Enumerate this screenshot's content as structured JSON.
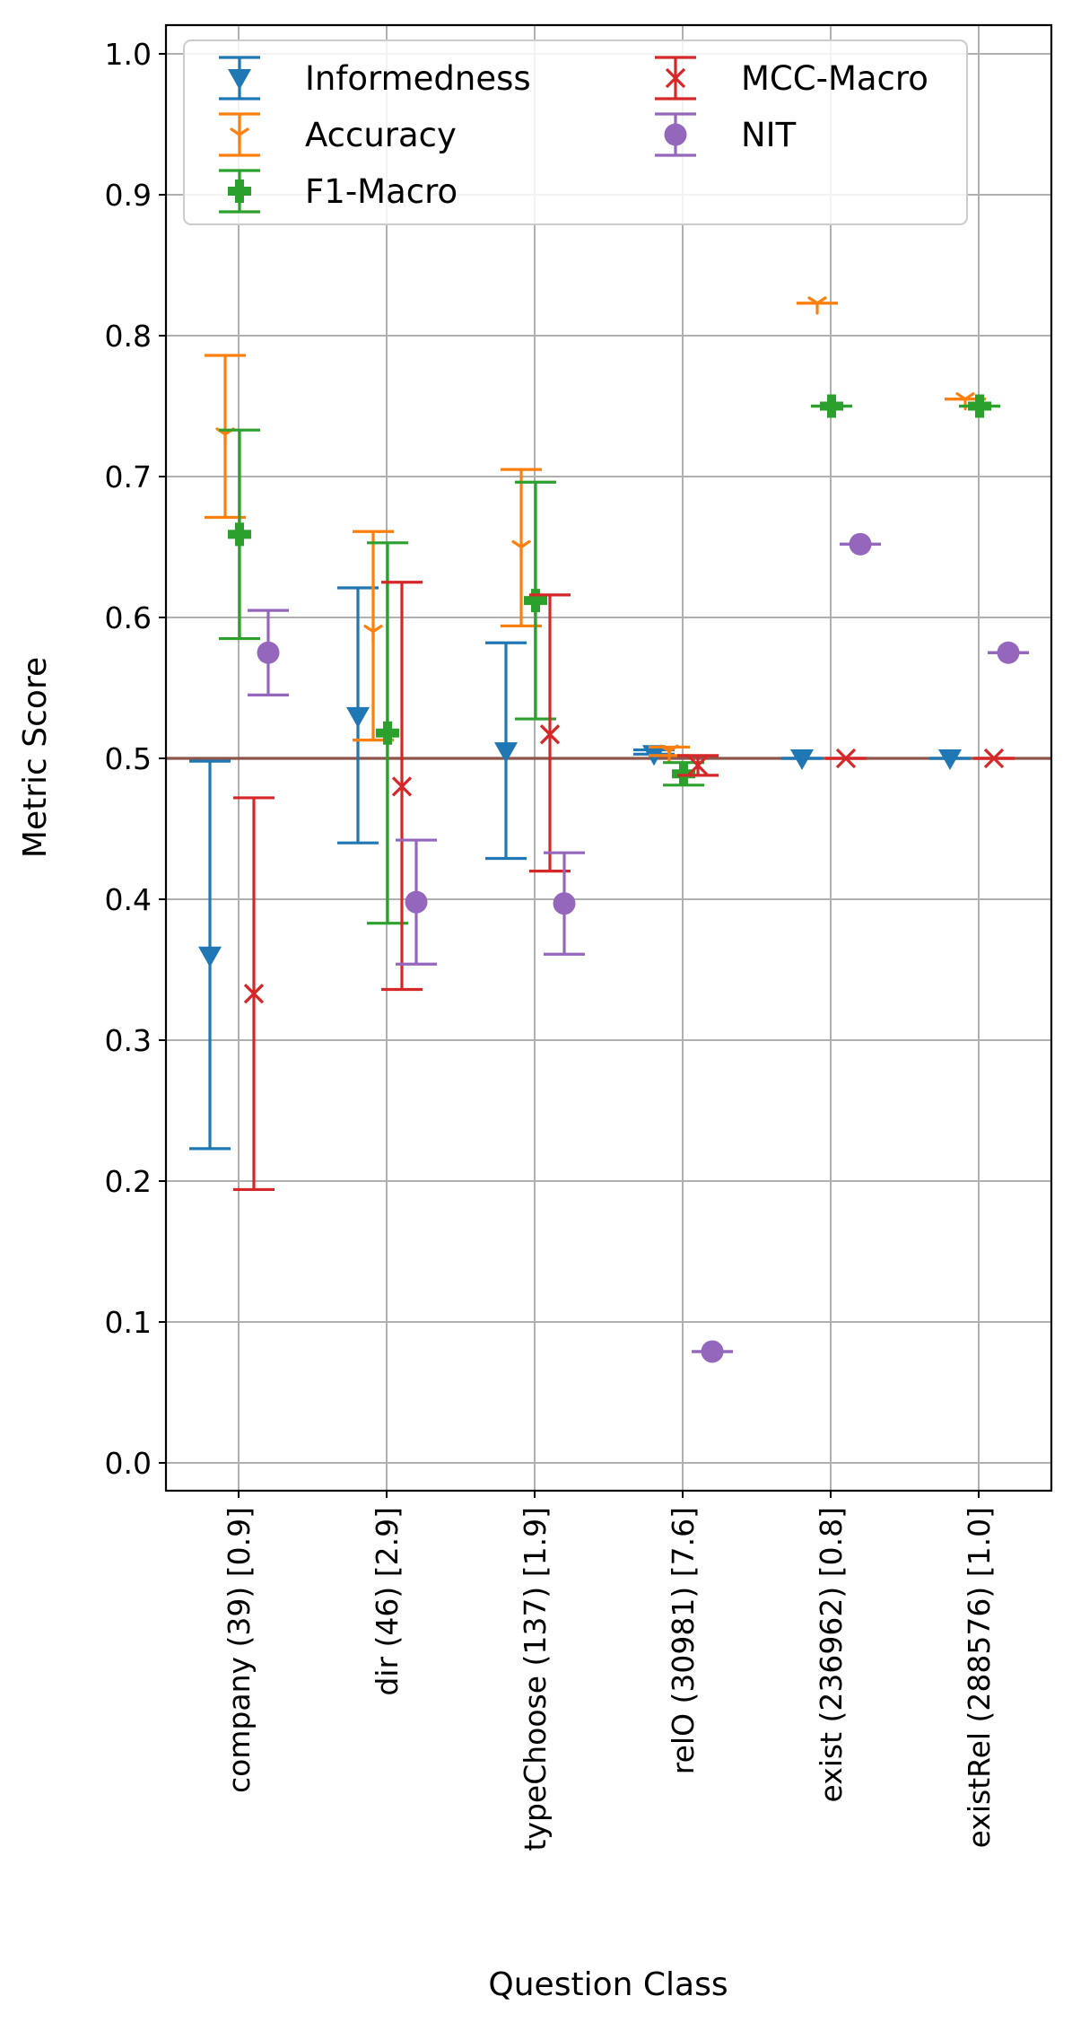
{
  "chart_data": {
    "type": "scatter",
    "xlabel": "Question Class",
    "ylabel": "Metric Score",
    "ylim": [
      -0.02,
      1.02
    ],
    "grid": true,
    "legend_position": "top-left",
    "yticks": [
      "0.0",
      "0.1",
      "0.2",
      "0.3",
      "0.4",
      "0.5",
      "0.6",
      "0.7",
      "0.8",
      "0.9",
      "1.0"
    ],
    "categories": [
      "company (39) [0.9]",
      "dir (46) [2.9]",
      "typeChoose (137) [1.9]",
      "relO (30981) [7.6]",
      "exist (236962) [0.8]",
      "existRel (288576) [1.0]"
    ],
    "reference_line": {
      "y": 0.5,
      "color": "#8c564b"
    },
    "series": [
      {
        "name": "Informedness",
        "color": "#1f77b4",
        "marker": "triangle-down",
        "values": [
          0.36,
          0.53,
          0.505,
          0.503,
          0.5,
          0.5
        ],
        "lower": [
          0.223,
          0.44,
          0.429,
          0.503,
          0.5,
          0.5
        ],
        "upper": [
          0.498,
          0.621,
          0.582,
          0.506,
          0.5,
          0.5
        ]
      },
      {
        "name": "Accuracy",
        "color": "#ff7f0e",
        "marker": "tri-down",
        "values": [
          0.73,
          0.59,
          0.65,
          0.505,
          0.823,
          0.755
        ],
        "lower": [
          0.671,
          0.513,
          0.594,
          0.502,
          0.823,
          0.755
        ],
        "upper": [
          0.786,
          0.661,
          0.705,
          0.508,
          0.823,
          0.755
        ]
      },
      {
        "name": "F1-Macro",
        "color": "#2ca02c",
        "marker": "plus-filled",
        "values": [
          0.659,
          0.518,
          0.612,
          0.489,
          0.75,
          0.75
        ],
        "lower": [
          0.585,
          0.383,
          0.528,
          0.481,
          0.75,
          0.75
        ],
        "upper": [
          0.733,
          0.653,
          0.696,
          0.497,
          0.75,
          0.75
        ]
      },
      {
        "name": "MCC-Macro",
        "color": "#d62728",
        "marker": "x",
        "values": [
          0.333,
          0.48,
          0.517,
          0.495,
          0.5,
          0.5
        ],
        "lower": [
          0.194,
          0.336,
          0.42,
          0.488,
          0.5,
          0.5
        ],
        "upper": [
          0.472,
          0.625,
          0.616,
          0.502,
          0.5,
          0.5
        ]
      },
      {
        "name": "NIT",
        "color": "#9467bd",
        "marker": "circle",
        "values": [
          0.575,
          0.398,
          0.397,
          0.079,
          0.652,
          0.575
        ],
        "lower": [
          0.545,
          0.354,
          0.361,
          0.079,
          0.652,
          0.575
        ],
        "upper": [
          0.605,
          0.442,
          0.433,
          0.079,
          0.652,
          0.575
        ]
      }
    ]
  }
}
